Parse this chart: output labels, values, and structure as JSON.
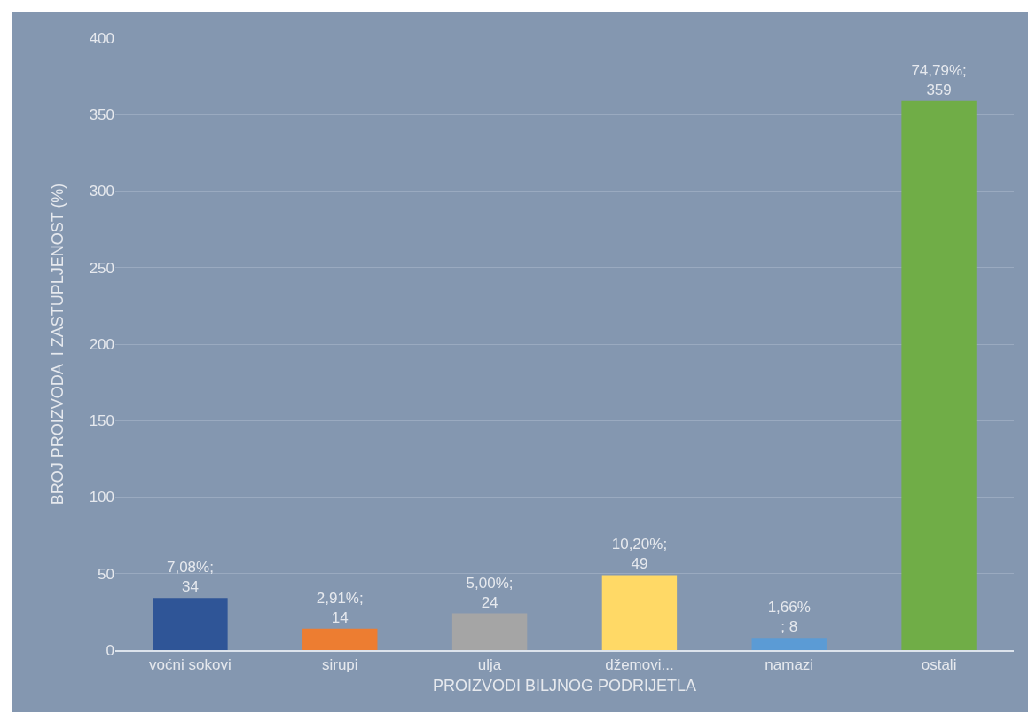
{
  "chart_data": {
    "type": "bar",
    "xlabel": "PROIZVODI BILJNOG PODRIJETLA",
    "ylabel": "BROJ PROIZVODA  I ZASTUPLJENOST (%)",
    "categories": [
      "voćni sokovi",
      "sirupi",
      "ulja",
      "džemovi...",
      "namazi",
      "ostali"
    ],
    "values": [
      34,
      14,
      24,
      49,
      8,
      359
    ],
    "colors": [
      "#2f5597",
      "#ed7d31",
      "#a5a5a5",
      "#ffd966",
      "#5b9bd5",
      "#70ad47"
    ],
    "value_labels": [
      "7,08%;\n34",
      "2,91%;\n14",
      "5,00%;\n24",
      "10,20%;\n49",
      "1,66%\n; 8",
      "74,79%;\n359"
    ],
    "ylim": [
      0,
      400
    ],
    "yticks": [
      0,
      50,
      100,
      150,
      200,
      250,
      300,
      350,
      400
    ],
    "grid": "y",
    "legend": false
  }
}
